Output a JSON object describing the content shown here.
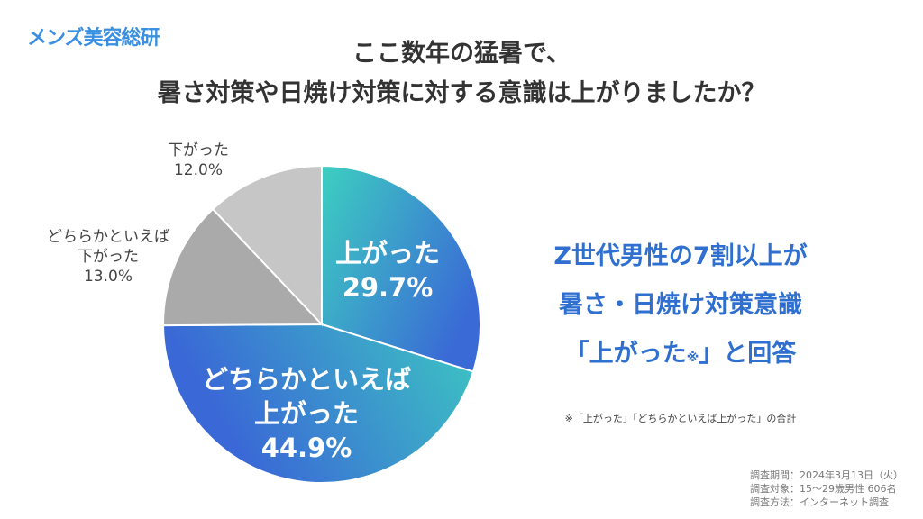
{
  "logo": "メンズ美容総研",
  "chart_data": {
    "type": "pie",
    "title": [
      "ここ数年の猛暑で、",
      "暑さ対策や日焼け対策に対する意識は上がりましたか？"
    ],
    "start": "top",
    "direction": "clockwise",
    "slices": [
      {
        "label": "上がった",
        "value": 29.7,
        "display": "29.7%",
        "colors": [
          "#3dcfc0",
          "#3a6ad6"
        ]
      },
      {
        "label": "どちらかといえば上がった",
        "label_lines": [
          "どちらかといえば",
          "上がった"
        ],
        "value": 44.9,
        "display": "44.9%",
        "colors": [
          "#3a68d6",
          "#3dcfc0"
        ]
      },
      {
        "label": "どちらかといえば下がった",
        "label_lines": [
          "どちらかといえば",
          "下がった"
        ],
        "value": 13.0,
        "display": "13.0%",
        "colors": [
          "#aaaaaa",
          "#aaaaaa"
        ]
      },
      {
        "label": "下がった",
        "value": 12.0,
        "display": "12.0%",
        "colors": [
          "#c6c6c6",
          "#c6c6c6"
        ]
      }
    ]
  },
  "headline": {
    "line1": "Z世代男性の7割以上が",
    "line2": "暑さ・日焼け対策意識",
    "line3a": "「上がった",
    "line3mark": "※",
    "line3b": "」と回答"
  },
  "note": "※「上がった」「どちらかといえば上がった」の合計",
  "meta": [
    "調査期間：2024年3月13日（火）",
    "調査対象：15〜29歳男性 606名",
    "調査方法：インターネット調査"
  ]
}
